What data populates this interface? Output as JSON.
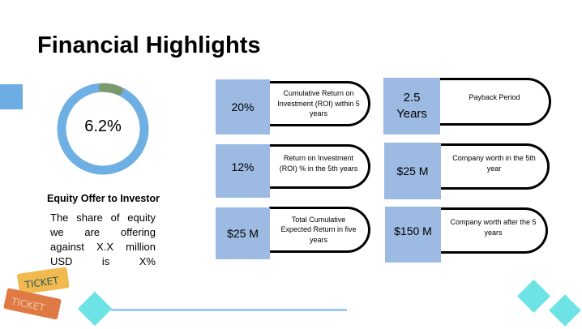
{
  "title": "Financial Highlights",
  "donut": {
    "value_label": "6.2%",
    "percent": 6.2,
    "track_color": "#6fb0e4",
    "fill_color": "#7a9a6e"
  },
  "equity": {
    "title": "Equity Offer to Investor",
    "text": "The share of equity we are offering against X.X million USD is X%"
  },
  "cards": [
    {
      "value": "20%",
      "label": "Cumulative Return on Investment (ROI) within 5 years"
    },
    {
      "value": "2.5 Years",
      "label": "Payback Period"
    },
    {
      "value": "12%",
      "label": "Return on Investment (ROI)  % in the 5th years"
    },
    {
      "value": "$25 M",
      "label": "Company worth in the 5th year"
    },
    {
      "value": "$25 M",
      "label": "Total Cumulative Expected Return in five years"
    },
    {
      "value": "$150 M",
      "label": "Company worth after the 5 years"
    }
  ],
  "decor": {
    "ticket_text": "TICKET",
    "accent": "#6de3e6",
    "box_color": "#9dbae3"
  }
}
